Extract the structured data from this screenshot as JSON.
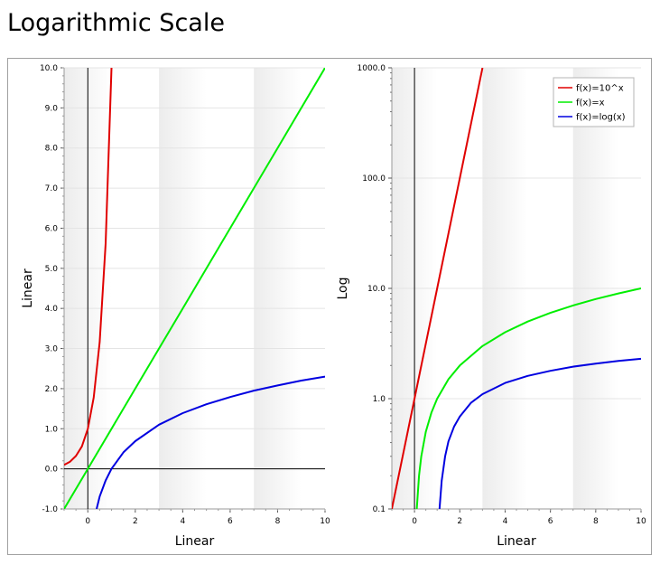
{
  "page": {
    "title": "Logarithmic Scale"
  },
  "chart_data": [
    {
      "type": "line",
      "title": "",
      "xlabel": "Linear",
      "ylabel": "Linear",
      "xscale": "linear",
      "yscale": "linear",
      "xlim": [
        -1,
        10
      ],
      "ylim": [
        -1,
        10
      ],
      "xticks": [
        "0",
        "2",
        "4",
        "6",
        "8",
        "10"
      ],
      "yticks": [
        "-1.0",
        "0.0",
        "1.0",
        "2.0",
        "3.0",
        "4.0",
        "5.0",
        "6.0",
        "7.0",
        "8.0",
        "9.0",
        "10.0"
      ],
      "alternating_bands": true,
      "axis_lines_at_zero": true,
      "legend": false,
      "series": [
        {
          "name": "f(x)=10^x",
          "color": "#e00000",
          "x": [
            -1,
            -0.75,
            -0.5,
            -0.25,
            0,
            0.25,
            0.5,
            0.75,
            1
          ],
          "y": [
            0.1,
            0.18,
            0.32,
            0.56,
            1.0,
            1.78,
            3.16,
            5.62,
            10.0
          ]
        },
        {
          "name": "f(x)=x",
          "color": "#00ee00",
          "x": [
            -1,
            0,
            2,
            4,
            6,
            8,
            10
          ],
          "y": [
            -1,
            0,
            2,
            4,
            6,
            8,
            10
          ]
        },
        {
          "name": "f(x)=log(x)",
          "color": "#0000e0",
          "x": [
            0.37,
            0.5,
            0.75,
            1,
            1.5,
            2,
            3,
            4,
            5,
            6,
            7,
            8,
            9,
            10
          ],
          "y": [
            -1.0,
            -0.69,
            -0.29,
            0,
            0.41,
            0.69,
            1.1,
            1.39,
            1.61,
            1.79,
            1.95,
            2.08,
            2.2,
            2.3
          ]
        }
      ]
    },
    {
      "type": "line",
      "title": "",
      "xlabel": "Linear",
      "ylabel": "Log",
      "xscale": "linear",
      "yscale": "log",
      "xlim": [
        -1,
        10
      ],
      "ylim": [
        0.1,
        1000
      ],
      "xticks": [
        "0",
        "2",
        "4",
        "6",
        "8",
        "10"
      ],
      "yticks": [
        "0.1",
        "1.0",
        "10.0",
        "100.0",
        "1000.0"
      ],
      "alternating_bands": true,
      "axis_lines_at_zero": true,
      "legend": true,
      "legend_position": "top-right",
      "series": [
        {
          "name": "f(x)=10^x",
          "color": "#e00000",
          "x": [
            -1,
            0,
            1,
            2,
            3
          ],
          "y": [
            0.1,
            1,
            10,
            100,
            1000
          ]
        },
        {
          "name": "f(x)=x",
          "color": "#00ee00",
          "x": [
            0.1,
            0.2,
            0.3,
            0.5,
            0.75,
            1,
            1.5,
            2,
            3,
            4,
            5,
            6,
            7,
            8,
            9,
            10
          ],
          "y": [
            0.1,
            0.2,
            0.3,
            0.5,
            0.75,
            1,
            1.5,
            2,
            3,
            4,
            5,
            6,
            7,
            8,
            9,
            10
          ]
        },
        {
          "name": "f(x)=log(x)",
          "color": "#0000e0",
          "x": [
            1.105,
            1.2,
            1.35,
            1.5,
            1.75,
            2,
            2.5,
            3,
            4,
            5,
            6,
            7,
            8,
            9,
            10
          ],
          "y": [
            0.1,
            0.18,
            0.3,
            0.41,
            0.56,
            0.69,
            0.92,
            1.1,
            1.39,
            1.61,
            1.79,
            1.95,
            2.08,
            2.2,
            2.3
          ]
        }
      ]
    }
  ]
}
